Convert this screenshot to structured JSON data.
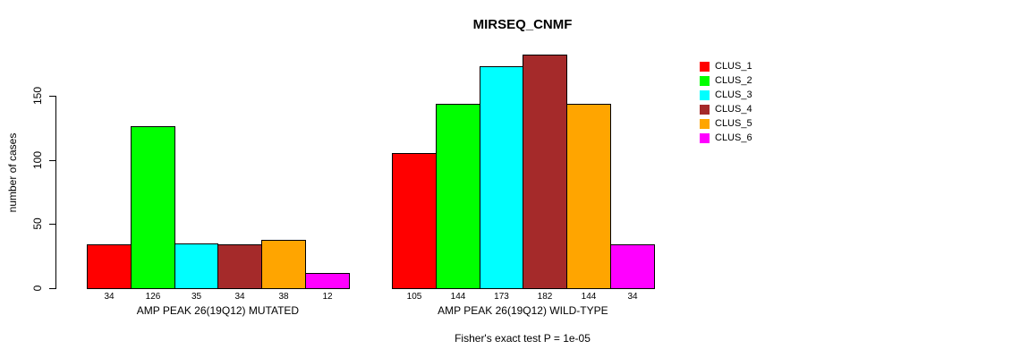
{
  "chart_data": {
    "type": "bar",
    "title": "MIRSEQ_CNMF",
    "ylabel": "number of cases",
    "xlabel": "",
    "ylim": [
      0,
      150
    ],
    "yticks": [
      0,
      50,
      100,
      150
    ],
    "grid": false,
    "legend_position": "right",
    "bar_value_labels_shown": true,
    "categories": [
      "AMP PEAK 26(19Q12) MUTATED",
      "AMP PEAK 26(19Q12) WILD-TYPE"
    ],
    "series": [
      {
        "name": "CLUS_1",
        "color": "#FF0000",
        "values": [
          34,
          105
        ]
      },
      {
        "name": "CLUS_2",
        "color": "#00FF00",
        "values": [
          126,
          144
        ]
      },
      {
        "name": "CLUS_3",
        "color": "#00FFFF",
        "values": [
          35,
          173
        ]
      },
      {
        "name": "CLUS_4",
        "color": "#A52A2A",
        "values": [
          34,
          182
        ]
      },
      {
        "name": "CLUS_5",
        "color": "#FFA500",
        "values": [
          38,
          144
        ]
      },
      {
        "name": "CLUS_6",
        "color": "#FF00FF",
        "values": [
          12,
          34
        ]
      }
    ],
    "annotation": "Fisher's exact test P = 1e-05"
  }
}
